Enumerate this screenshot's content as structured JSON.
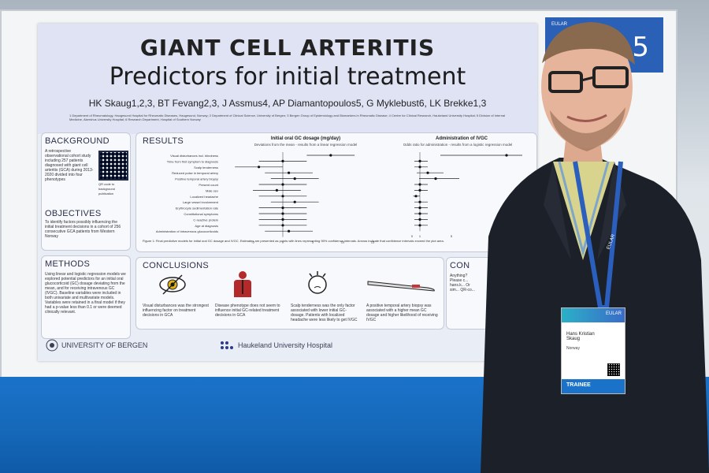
{
  "poster": {
    "title": "GIANT CELL ARTERITIS",
    "subtitle": "Predictors for initial treatment",
    "authors": "HK Skaug1,2,3, BT Fevang2,3, J Assmus4, AP Diamantopoulos5, G Myklebust6, LK Brekke1,3",
    "affiliations": "1 Department of Rheumatology, Haugesund Hospital for Rheumatic Diseases, Haugesund, Norway; 2 Department of Clinical Science, University of Bergen; 3 Bergen Group of Epidemiology and Biomarkers in Rheumatic Disease; 4 Centre for Clinical Research, Haukeland University Hospital; 5 Division of Internal Medicine, Akershus University Hospital; 6 Research Department, Hospital of Southern Norway",
    "background": {
      "heading": "BACKGROUND",
      "text": "A retrospective observational cohort study including 257 patients diagnosed with giant cell arteritis (GCA) during 2013-2020 divided into four phenotypes",
      "qr_caption": "QR code to background publication"
    },
    "objectives": {
      "heading": "OBJECTIVES",
      "text": "To identify factors possibly influencing the initial treatment decisions in a cohort of 256 consecutive GCA patients from Western Norway"
    },
    "methods": {
      "heading": "METHODS",
      "text": "Using linear and logistic regression models we explored potential predictors for an initial oral glucocorticoid (GC) dosage deviating from the mean, and for receiving intravenous GC (IVGC). Baseline variables were included in both univariate and multivariate models. Variables were retained in a final model if they had a p-value less than 0.1 or were deemed clinically relevant."
    },
    "results": {
      "heading": "RESULTS",
      "figure_caption": "Figure 1: Final predictive models for initial oral GC dosage and IVGC. Estimates are presented as points with lines representing 95% confidence intervals. Arrows indicate that confidence intervals exceed the plot area."
    },
    "conclusions": {
      "heading": "CONCLUSIONS",
      "items": [
        {
          "icon": "eye-icon",
          "text": "Visual disturbances was the strongest influencing factor on treatment decisions in GCA"
        },
        {
          "icon": "body-icon",
          "text": "Disease phenotype does not seem to influence initial GC-related treatment decisions in GCA"
        },
        {
          "icon": "headache-icon",
          "text": "Scalp tenderness was the only factor associated with lower initial GC-dosage. Patients with localized headache were less likely to get IVGC"
        },
        {
          "icon": "biopsy-icon",
          "text": "A positive temporal artery biopsy was associated with a higher mean GC dosage and higher likelihood of receiving IVGC"
        }
      ]
    },
    "contact": {
      "heading": "CON",
      "text": "Anything? Please c... hans.k... Or sim... QR-co..."
    },
    "footer": {
      "university": "UNIVERSITY OF BERGEN",
      "hospital": "Haukeland University Hospital"
    }
  },
  "chart_data": [
    {
      "type": "scatter",
      "title": "Initial oral GC dosage (mg/day)",
      "subtitle": "Deviations from the mean - results from a linear regression model",
      "categories": [
        "Visual disturbances incl. blindness",
        "Time from first symptom to diagnosis",
        "Scalp tenderness",
        "Reduced pulse in temporal artery",
        "Positive temporal artery biopsy",
        "Present count",
        "Male sex",
        "Localized headache",
        "Large vessel involvement",
        "Erythrocyte sedimentation rate",
        "Constitutional symptoms",
        "C-reactive protein",
        "Age at diagnosis",
        "Administration of intravenous glucocorticoids"
      ],
      "values": [
        8,
        0,
        -4,
        1,
        2,
        0,
        -1,
        0,
        2,
        0,
        0,
        0,
        0,
        1
      ],
      "xlim": [
        -10,
        15
      ],
      "x_ticks": [
        "-5",
        "0",
        "5",
        "10",
        "15"
      ]
    },
    {
      "type": "scatter",
      "title": "Administration of IVGC",
      "subtitle": "Odds ratio for administration - results from a logistic regression model",
      "categories": [
        "Visual disturbances incl. blindness",
        "Time from first symptom to diagnosis",
        "Scalp tenderness",
        "Reduced pulse in temporal artery",
        "Positive temporal artery biopsy",
        "Present count",
        "Male sex",
        "Localized headache",
        "Large vessel involvement",
        "Erythrocyte sedimentation rate",
        "Constitutional symptoms",
        "C-reactive protein",
        "Age at diagnosis"
      ],
      "values": [
        12,
        1,
        1,
        2,
        3,
        1,
        1,
        0.5,
        1,
        1,
        1,
        1,
        1
      ],
      "x_ticks": [
        "0",
        "1",
        "5",
        "10"
      ]
    }
  ],
  "booth": {
    "sign_number": "5",
    "sign_label": "EULAR"
  },
  "badge": {
    "org": "EULAR",
    "name": "Hans Kristian Skaug",
    "country": "Norway",
    "role": "TRAINEE"
  },
  "lanyard": {
    "text": "EULAR"
  }
}
